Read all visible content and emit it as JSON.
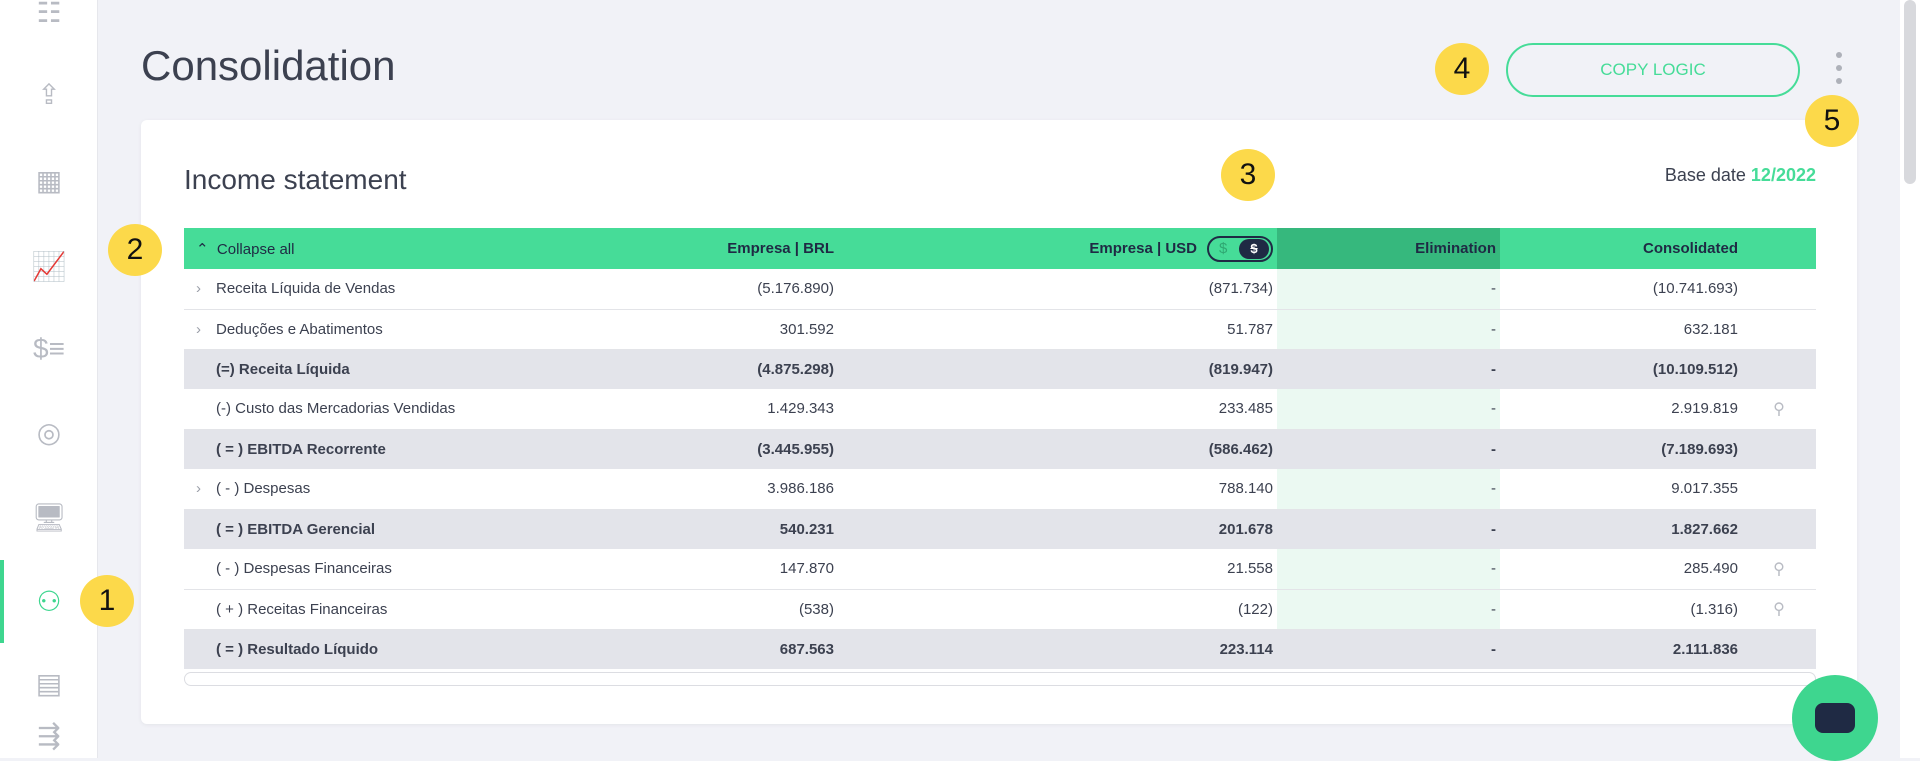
{
  "page": {
    "title": "Consolidation",
    "copy_logic": "COPY LOGIC"
  },
  "sidebar": {
    "items": [
      "list-icon",
      "upload-file-icon",
      "edit-table-icon",
      "line-chart-icon",
      "dollar-list-icon",
      "target-icon",
      "monitor-chart-icon",
      "hierarchy-icon",
      "report-icon",
      "arrow-list-icon"
    ]
  },
  "card": {
    "title": "Income statement",
    "base_date_label": "Base date",
    "base_date_value": "12/2022"
  },
  "table": {
    "headers": {
      "collapse": "Collapse all",
      "brl": "Empresa | BRL",
      "usd": "Empresa | USD",
      "toggle_off": "$",
      "toggle_on": "$",
      "elimination": "Elimination",
      "consolidated": "Consolidated"
    },
    "rows": [
      {
        "label": "Receita Líquida de Vendas",
        "brl": "(5.176.890)",
        "usd": "(871.734)",
        "elim": "-",
        "cons": "(10.741.693)",
        "expand": true,
        "bold": false,
        "search": false
      },
      {
        "label": "Deduções e Abatimentos",
        "brl": "301.592",
        "usd": "51.787",
        "elim": "-",
        "cons": "632.181",
        "expand": true,
        "bold": false,
        "search": false
      },
      {
        "label": "(=) Receita Líquida",
        "brl": "(4.875.298)",
        "usd": "(819.947)",
        "elim": "-",
        "cons": "(10.109.512)",
        "expand": false,
        "bold": true,
        "search": false
      },
      {
        "label": "(-) Custo das Mercadorias Vendidas",
        "brl": "1.429.343",
        "usd": "233.485",
        "elim": "-",
        "cons": "2.919.819",
        "expand": false,
        "bold": false,
        "search": true
      },
      {
        "label": "( = ) EBITDA Recorrente",
        "brl": "(3.445.955)",
        "usd": "(586.462)",
        "elim": "-",
        "cons": "(7.189.693)",
        "expand": false,
        "bold": true,
        "search": false
      },
      {
        "label": "( - ) Despesas",
        "brl": "3.986.186",
        "usd": "788.140",
        "elim": "-",
        "cons": "9.017.355",
        "expand": true,
        "bold": false,
        "search": false
      },
      {
        "label": "( = ) EBITDA Gerencial",
        "brl": "540.231",
        "usd": "201.678",
        "elim": "-",
        "cons": "1.827.662",
        "expand": false,
        "bold": true,
        "search": false
      },
      {
        "label": "( - ) Despesas Financeiras",
        "brl": "147.870",
        "usd": "21.558",
        "elim": "-",
        "cons": "285.490",
        "expand": false,
        "bold": false,
        "search": true
      },
      {
        "label": "( + ) Receitas Financeiras",
        "brl": "(538)",
        "usd": "(122)",
        "elim": "-",
        "cons": "(1.316)",
        "expand": false,
        "bold": false,
        "search": true
      },
      {
        "label": "( = ) Resultado Líquido",
        "brl": "687.563",
        "usd": "223.114",
        "elim": "-",
        "cons": "2.111.836",
        "expand": false,
        "bold": true,
        "search": false
      }
    ]
  },
  "badges": [
    "1",
    "2",
    "3",
    "4",
    "5"
  ],
  "colors": {
    "accent": "#46dc98",
    "dark": "#1f2a44",
    "badge": "#fcd94a"
  }
}
